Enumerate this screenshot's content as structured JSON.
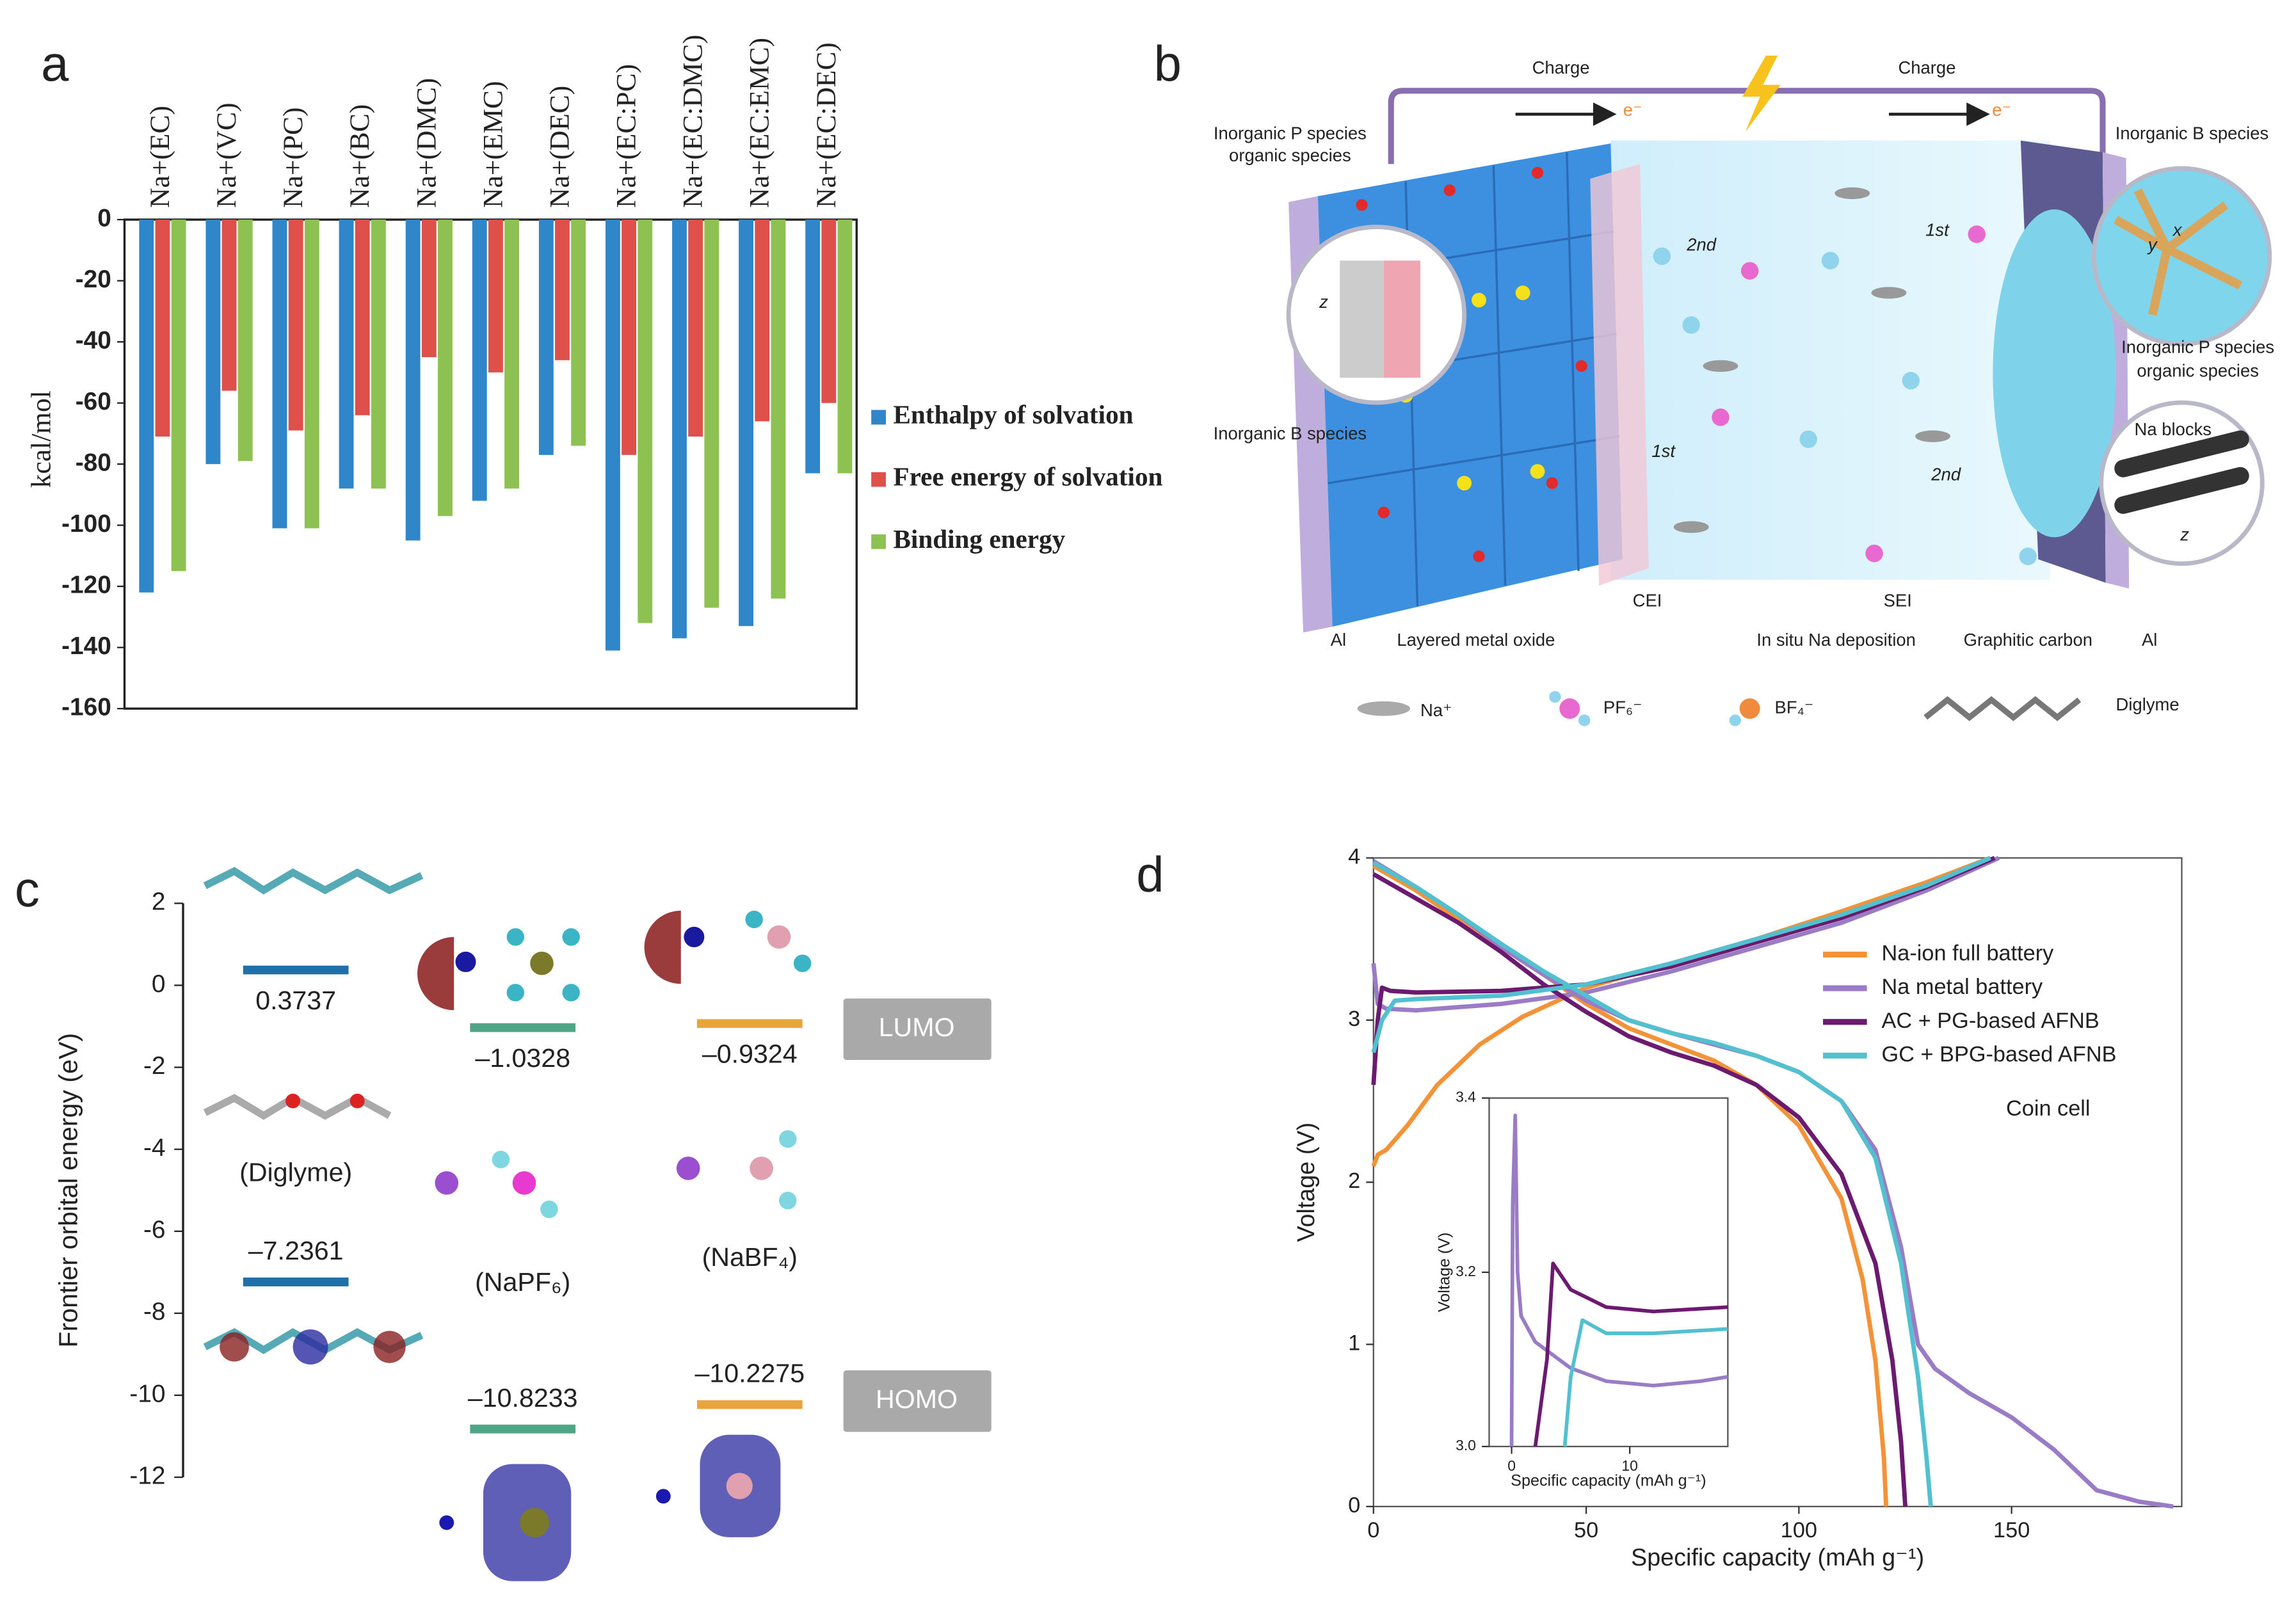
{
  "panel_labels": [
    "a",
    "b",
    "c",
    "d"
  ],
  "chart_data": [
    {
      "type": "bar",
      "categories": [
        "Na+(EC)",
        "Na+(VC)",
        "Na+(PC)",
        "Na+(BC)",
        "Na+(DMC)",
        "Na+(EMC)",
        "Na+(DEC)",
        "Na+(EC:PC)",
        "Na+(EC:DMC)",
        "Na+(EC:EMC)",
        "Na+(EC:DEC)"
      ],
      "series": [
        {
          "name": "Enthalpy of solvation",
          "color": "#2f87c9",
          "values": [
            -122,
            -80,
            -101,
            -88,
            -105,
            -92,
            -77,
            -141,
            -137,
            -133,
            -83
          ]
        },
        {
          "name": "Free energy of solvation",
          "color": "#e0504b",
          "values": [
            -71,
            -56,
            -69,
            -64,
            -45,
            -50,
            -46,
            -77,
            -71,
            -66,
            -60
          ]
        },
        {
          "name": "Binding energy",
          "color": "#8dc253",
          "values": [
            -115,
            -79,
            -101,
            -88,
            -97,
            -88,
            -74,
            -132,
            -127,
            -124,
            -83
          ]
        }
      ],
      "ylabel": "kcal/mol",
      "ylim": [
        -160,
        0
      ],
      "yticks": [
        0,
        -20,
        -40,
        -60,
        -80,
        -100,
        -120,
        -140,
        -160
      ],
      "legend": "right"
    },
    {
      "type": "energy-level",
      "categories": [
        "(Diglyme)",
        "(NaPF₆)",
        "(NaBF₄)"
      ],
      "colors": [
        "#1f6fa8",
        "#4fa586",
        "#e9a53b"
      ],
      "series": [
        {
          "name": "LUMO",
          "values": [
            0.3737,
            -1.0328,
            -0.9324
          ],
          "value_labels": [
            "0.3737",
            "–1.0328",
            "–0.9324"
          ]
        },
        {
          "name": "HOMO",
          "values": [
            -7.2361,
            -10.8233,
            -10.2275
          ],
          "value_labels": [
            "–7.2361",
            "–10.8233",
            "–10.2275"
          ]
        }
      ],
      "ylabel": "Frontier orbital energy (eV)",
      "ylim": [
        -12,
        2
      ],
      "yticks": [
        2,
        0,
        -2,
        -4,
        -6,
        -8,
        -10,
        -12
      ]
    },
    {
      "type": "line",
      "xlabel": "Specific capacity (mAh g⁻¹)",
      "ylabel": "Voltage (V)",
      "annotation": "Coin cell",
      "xlim": [
        0,
        190
      ],
      "ylim": [
        0,
        4
      ],
      "xticks": [
        0,
        50,
        100,
        150
      ],
      "yticks": [
        0,
        1,
        2,
        3,
        4
      ],
      "legend": "upper right",
      "series": [
        {
          "name": "Na-ion full battery",
          "color": "#f39237",
          "charge": {
            "x": [
              0,
              1,
              3,
              8,
              15,
              25,
              35,
              50,
              70,
              90,
              110,
              130,
              145
            ],
            "values": [
              2.1,
              2.17,
              2.2,
              2.35,
              2.6,
              2.85,
              3.02,
              3.2,
              3.35,
              3.5,
              3.67,
              3.85,
              4.0
            ]
          },
          "discharge": {
            "x": [
              0,
              10,
              20,
              30,
              40,
              50,
              60,
              70,
              80,
              90,
              100,
              110,
              115,
              118,
              120,
              120.5
            ],
            "values": [
              3.95,
              3.8,
              3.62,
              3.45,
              3.28,
              3.1,
              2.95,
              2.85,
              2.75,
              2.6,
              2.35,
              1.9,
              1.4,
              0.9,
              0.3,
              0
            ]
          }
        },
        {
          "name": "Na metal battery",
          "color": "#9a7cc6",
          "charge": {
            "x": [
              0,
              1,
              3,
              10,
              30,
              50,
              70,
              90,
              110,
              130,
              147
            ],
            "values": [
              3.35,
              3.1,
              3.07,
              3.06,
              3.1,
              3.17,
              3.3,
              3.45,
              3.6,
              3.8,
              4.0
            ]
          },
          "discharge": {
            "x": [
              0,
              10,
              20,
              30,
              40,
              50,
              60,
              70,
              80,
              90,
              100,
              110,
              118,
              124,
              128,
              132,
              140,
              150,
              160,
              170,
              180,
              188
            ],
            "values": [
              3.98,
              3.82,
              3.65,
              3.45,
              3.28,
              3.12,
              3.0,
              2.92,
              2.85,
              2.78,
              2.68,
              2.5,
              2.2,
              1.6,
              1.0,
              0.85,
              0.7,
              0.55,
              0.35,
              0.1,
              0.03,
              0
            ]
          }
        },
        {
          "name": "AC + PG-based AFNB",
          "color": "#6b1a6f",
          "charge": {
            "x": [
              0,
              1,
              2,
              4,
              10,
              30,
              50,
              70,
              90,
              110,
              130,
              146
            ],
            "values": [
              2.6,
              3.0,
              3.2,
              3.18,
              3.17,
              3.18,
              3.22,
              3.33,
              3.48,
              3.63,
              3.82,
              4.0
            ]
          },
          "discharge": {
            "x": [
              0,
              10,
              20,
              30,
              40,
              50,
              60,
              70,
              80,
              90,
              100,
              110,
              118,
              122,
              124,
              125
            ],
            "values": [
              3.9,
              3.75,
              3.6,
              3.42,
              3.22,
              3.05,
              2.9,
              2.8,
              2.72,
              2.6,
              2.4,
              2.05,
              1.5,
              0.9,
              0.4,
              0
            ]
          }
        },
        {
          "name": "GC + BPG-based AFNB",
          "color": "#52c0cf",
          "charge": {
            "x": [
              0,
              2,
              5,
              10,
              30,
              50,
              70,
              90,
              110,
              130,
              145
            ],
            "values": [
              2.8,
              3.0,
              3.12,
              3.13,
              3.15,
              3.22,
              3.35,
              3.5,
              3.65,
              3.83,
              4.0
            ]
          },
          "discharge": {
            "x": [
              0,
              10,
              20,
              30,
              40,
              50,
              60,
              70,
              80,
              90,
              100,
              110,
              118,
              124,
              128,
              130,
              131
            ],
            "values": [
              3.97,
              3.82,
              3.65,
              3.47,
              3.3,
              3.15,
              3.0,
              2.92,
              2.86,
              2.78,
              2.68,
              2.5,
              2.15,
              1.5,
              0.8,
              0.3,
              0
            ]
          }
        }
      ],
      "inset": {
        "xlabel": "Specific capacity (mAh g⁻¹)",
        "ylabel": "Voltage (V)",
        "xlim": [
          -1.9,
          18.3
        ],
        "ylim": [
          3.0,
          3.4
        ],
        "xticks": [
          0,
          10
        ],
        "yticks": [
          {
            "value": 3.0,
            "label": "3.0"
          },
          {
            "value": 3.2,
            "label": "3.2"
          },
          {
            "value": 3.4,
            "label": "3.4"
          }
        ],
        "series": [
          {
            "color": "#9a7cc6",
            "x": [
              0,
              0.1,
              0.3,
              0.5,
              0.8,
              2,
              5,
              8,
              12,
              16,
              18.3
            ],
            "values": [
              3.0,
              3.28,
              3.38,
              3.2,
              3.15,
              3.12,
              3.09,
              3.075,
              3.07,
              3.075,
              3.08
            ]
          },
          {
            "color": "#6b1a6f",
            "x": [
              2,
              3,
              3.5,
              5,
              8,
              12,
              18.3
            ],
            "values": [
              3.0,
              3.1,
              3.21,
              3.18,
              3.16,
              3.155,
              3.16
            ]
          },
          {
            "color": "#52c0cf",
            "x": [
              4.5,
              5,
              6,
              8,
              12,
              18.3
            ],
            "values": [
              3.0,
              3.08,
              3.145,
              3.13,
              3.13,
              3.135
            ]
          }
        ]
      }
    }
  ],
  "diagram_b": {
    "labels": [
      "Charge",
      "Charge",
      "e⁻",
      "e⁻",
      "Inorganic P species",
      "organic species",
      "Inorganic B species",
      "Al",
      "Layered metal oxide",
      "CEI",
      "SEI",
      "In situ Na deposition",
      "Graphitic carbon",
      "Al",
      "Inorganic B species",
      "Inorganic P species",
      "organic species",
      "Na blocks",
      "2nd",
      "1st",
      "1st",
      "2nd",
      "z",
      "z",
      "x",
      "y"
    ],
    "legend": [
      "Na⁺",
      "PF₆⁻",
      "BF₄⁻",
      "Diglyme"
    ]
  }
}
